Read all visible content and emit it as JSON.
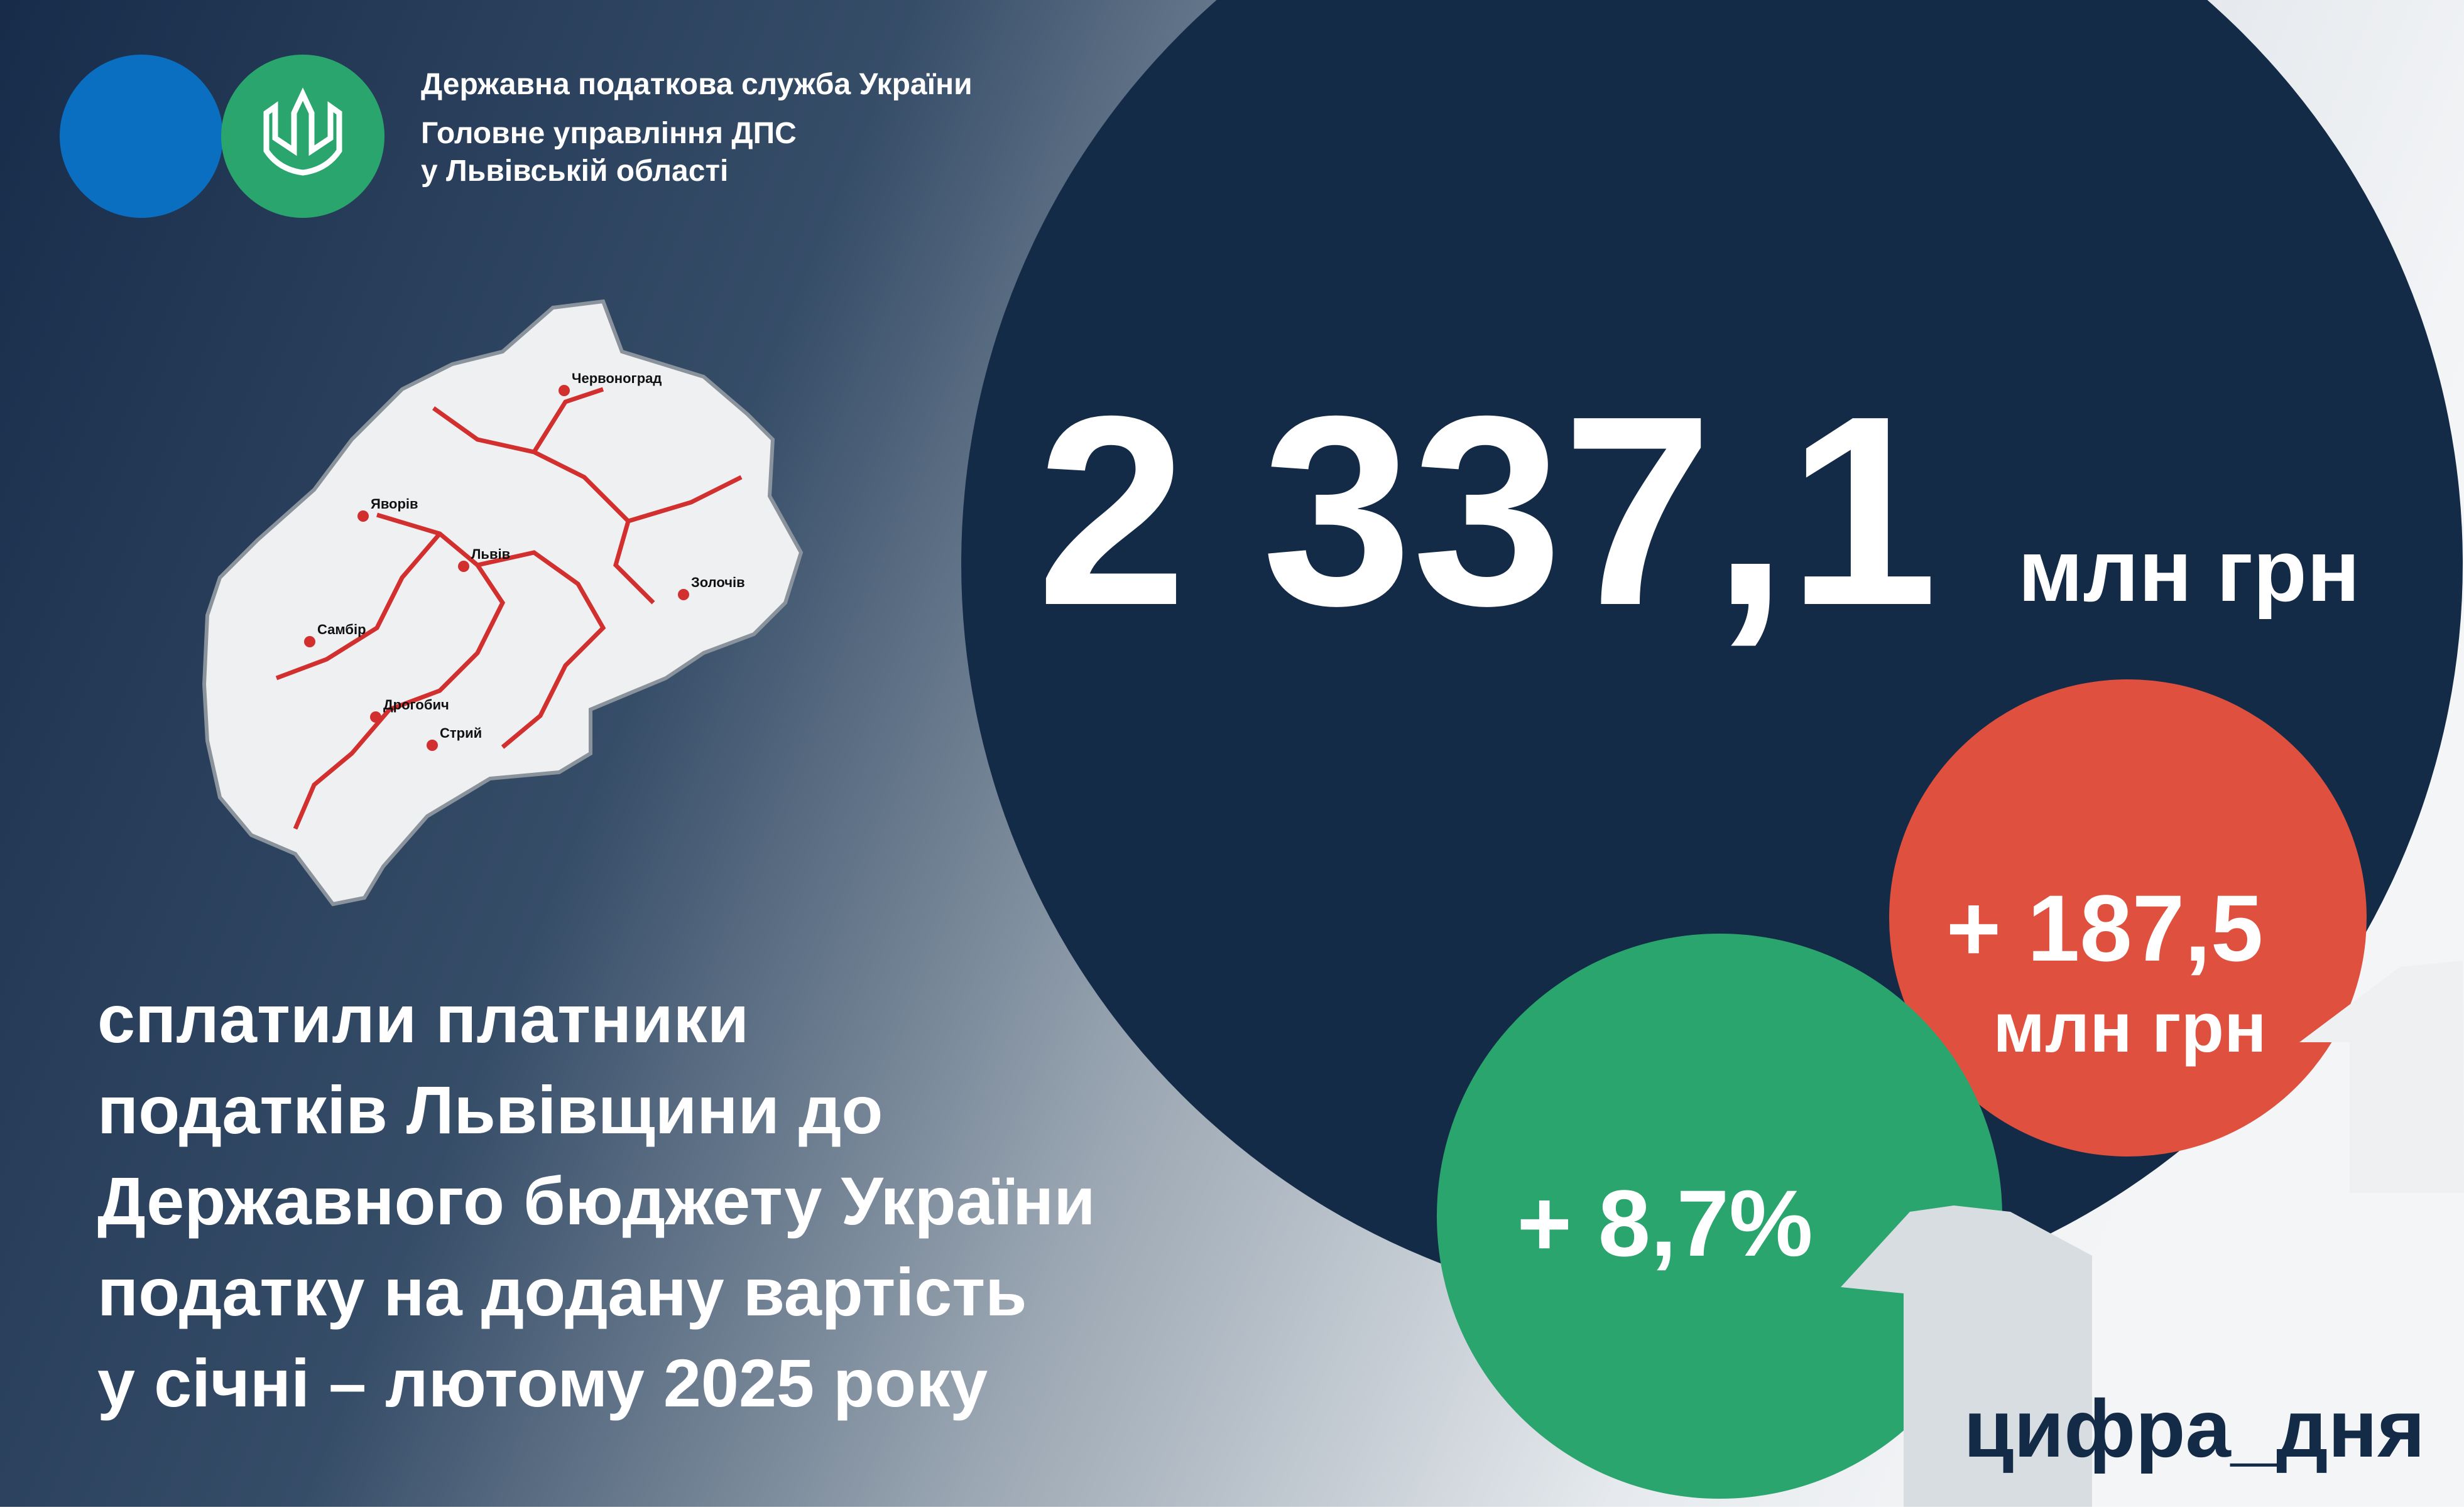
{
  "header": {
    "org_lines": [
      "Державна податкова служба України",
      "Головне управління ДПС",
      "у Львівській області"
    ]
  },
  "map": {
    "cities": [
      "Червоноград",
      "Яворів",
      "Львів",
      "Золочів",
      "Самбір",
      "Дрогобич",
      "Стрий"
    ]
  },
  "main": {
    "value": "2 337,1",
    "unit": "млн грн"
  },
  "changes": {
    "absolute": "+ 187,5",
    "absolute_unit": "млн грн",
    "percent": "+ 8,7%"
  },
  "description": {
    "lines": [
      "сплатили платники",
      "податків Львівщини до",
      "Державного бюджету України",
      "податку на додану вартість",
      "у січні – лютому 2025 року"
    ]
  },
  "hashtag": "цифра_дня"
}
